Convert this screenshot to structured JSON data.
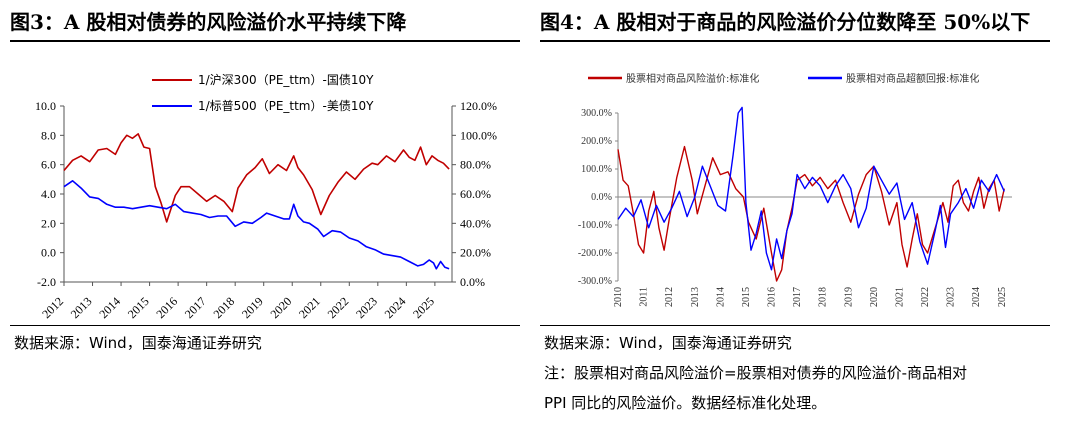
{
  "left": {
    "title": "图3：A 股相对债券的风险溢价水平持续下降",
    "source": "数据来源：Wind，国泰海通证券研究",
    "chart_data": {
      "type": "line",
      "x_ticks": [
        "2012",
        "2013",
        "2014",
        "2015",
        "2016",
        "2017",
        "2018",
        "2019",
        "2020",
        "2021",
        "2022",
        "2023",
        "2024",
        "2025"
      ],
      "x_range": [
        2012.0,
        2025.6
      ],
      "left_ylim": [
        -2.0,
        10.0
      ],
      "left_ticks": [
        "-2.0",
        "0.0",
        "2.0",
        "4.0",
        "6.0",
        "8.0",
        "10.0"
      ],
      "right_ylim": [
        0,
        120
      ],
      "right_ticks": [
        "0.0%",
        "20.0%",
        "40.0%",
        "60.0%",
        "80.0%",
        "100.0%",
        "120.0%"
      ],
      "legend_position": "top-center",
      "series": [
        {
          "name": "1/沪深300（PE_ttm）-国债10Y",
          "color": "#C00000",
          "axis": "left",
          "x": [
            2012.0,
            2012.3,
            2012.6,
            2012.9,
            2013.2,
            2013.5,
            2013.8,
            2014.0,
            2014.2,
            2014.4,
            2014.6,
            2014.8,
            2015.0,
            2015.2,
            2015.4,
            2015.6,
            2015.9,
            2016.1,
            2016.4,
            2016.7,
            2017.0,
            2017.3,
            2017.6,
            2017.9,
            2018.1,
            2018.4,
            2018.7,
            2018.95,
            2019.2,
            2019.5,
            2019.8,
            2020.05,
            2020.2,
            2020.4,
            2020.7,
            2021.0,
            2021.3,
            2021.6,
            2021.9,
            2022.2,
            2022.5,
            2022.8,
            2023.0,
            2023.3,
            2023.6,
            2023.9,
            2024.1,
            2024.3,
            2024.5,
            2024.7,
            2024.9,
            2025.1,
            2025.3,
            2025.5
          ],
          "values": [
            5.6,
            6.3,
            6.6,
            6.2,
            7.0,
            7.1,
            6.7,
            7.5,
            8.0,
            7.8,
            8.1,
            7.2,
            7.1,
            4.5,
            3.4,
            2.1,
            3.9,
            4.5,
            4.5,
            4.0,
            3.5,
            3.9,
            3.5,
            2.8,
            4.4,
            5.3,
            5.8,
            6.4,
            5.4,
            6.0,
            5.6,
            6.6,
            5.8,
            5.3,
            4.3,
            2.6,
            3.9,
            4.8,
            5.5,
            5.0,
            5.7,
            6.1,
            6.0,
            6.6,
            6.2,
            7.0,
            6.5,
            6.3,
            7.2,
            6.0,
            6.6,
            6.3,
            6.1,
            5.7
          ]
        },
        {
          "name": "1/标普500（PE_ttm）-美债10Y",
          "color": "#0000FF",
          "axis": "right",
          "x": [
            2012.0,
            2012.3,
            2012.6,
            2012.9,
            2013.2,
            2013.5,
            2013.8,
            2014.1,
            2014.4,
            2014.7,
            2015.0,
            2015.3,
            2015.6,
            2015.9,
            2016.2,
            2016.5,
            2016.8,
            2017.1,
            2017.4,
            2017.7,
            2018.0,
            2018.3,
            2018.6,
            2018.9,
            2019.1,
            2019.4,
            2019.7,
            2019.9,
            2020.05,
            2020.2,
            2020.4,
            2020.6,
            2020.9,
            2021.1,
            2021.4,
            2021.7,
            2022.0,
            2022.3,
            2022.6,
            2022.9,
            2023.2,
            2023.5,
            2023.8,
            2024.1,
            2024.4,
            2024.6,
            2024.8,
            2024.95,
            2025.05,
            2025.2,
            2025.35,
            2025.5
          ],
          "values": [
            65,
            69,
            64,
            58,
            57,
            53,
            51,
            51,
            50,
            51,
            52,
            51,
            50,
            53,
            48,
            47,
            46,
            44,
            45,
            45,
            38,
            41,
            40,
            44,
            47,
            45,
            43,
            43,
            53,
            45,
            41,
            40,
            36,
            31,
            35,
            34,
            30,
            28,
            24,
            22,
            19,
            18,
            17,
            14,
            11,
            12,
            15,
            13,
            9,
            14,
            10,
            9
          ]
        }
      ]
    }
  },
  "right": {
    "title": "图4：A 股相对于商品的风险溢价分位数降至 50%以下",
    "source": "数据来源：Wind，国泰海通证券研究",
    "note_line1": "注：股票相对商品风险溢价=股票相对债券的风险溢价-商品相对",
    "note_line2": "PPI 同比的风险溢价。数据经标准化处理。",
    "chart_data": {
      "type": "line",
      "x_ticks": [
        "2010",
        "2011",
        "2012",
        "2013",
        "2014",
        "2015",
        "2016",
        "2017",
        "2018",
        "2019",
        "2020",
        "2021",
        "2022",
        "2023",
        "2024",
        "2025"
      ],
      "x_range": [
        2010.0,
        2025.4
      ],
      "ylim": [
        -300,
        300
      ],
      "y_ticks": [
        "-300.0%",
        "-200.0%",
        "-100.0%",
        "0.0%",
        "100.0%",
        "200.0%",
        "300.0%"
      ],
      "legend_position": "top-center",
      "series": [
        {
          "name": "股票相对商品风险溢价:标准化",
          "color": "#C00000",
          "x": [
            2010.0,
            2010.2,
            2010.4,
            2010.6,
            2010.8,
            2011.0,
            2011.2,
            2011.4,
            2011.6,
            2011.8,
            2012.0,
            2012.3,
            2012.6,
            2012.9,
            2013.1,
            2013.4,
            2013.7,
            2014.0,
            2014.3,
            2014.6,
            2014.9,
            2015.1,
            2015.4,
            2015.7,
            2016.0,
            2016.2,
            2016.4,
            2016.6,
            2016.8,
            2017.0,
            2017.3,
            2017.6,
            2017.9,
            2018.2,
            2018.5,
            2018.8,
            2019.1,
            2019.4,
            2019.7,
            2020.0,
            2020.3,
            2020.6,
            2020.9,
            2021.1,
            2021.3,
            2021.5,
            2021.7,
            2021.9,
            2022.1,
            2022.3,
            2022.5,
            2022.7,
            2022.9,
            2023.1,
            2023.3,
            2023.5,
            2023.7,
            2023.9,
            2024.1,
            2024.3,
            2024.5,
            2024.7,
            2024.9,
            2025.1
          ],
          "values": [
            170,
            60,
            40,
            -60,
            -170,
            -200,
            -50,
            20,
            -110,
            -190,
            -80,
            70,
            180,
            60,
            -60,
            40,
            140,
            80,
            90,
            30,
            0,
            -90,
            -150,
            -40,
            -200,
            -300,
            -260,
            -120,
            -40,
            60,
            80,
            40,
            70,
            30,
            60,
            -20,
            -90,
            10,
            80,
            110,
            20,
            -100,
            -20,
            -170,
            -250,
            -150,
            -60,
            -170,
            -200,
            -140,
            -80,
            -20,
            -90,
            40,
            60,
            -20,
            -50,
            20,
            70,
            -40,
            30,
            60,
            -50,
            30
          ]
        },
        {
          "name": "股票相对商品超额回报:标准化",
          "color": "#0000FF",
          "x": [
            2010.0,
            2010.3,
            2010.6,
            2010.9,
            2011.2,
            2011.5,
            2011.8,
            2012.1,
            2012.4,
            2012.7,
            2013.0,
            2013.3,
            2013.6,
            2013.9,
            2014.2,
            2014.5,
            2014.7,
            2014.85,
            2015.0,
            2015.2,
            2015.4,
            2015.6,
            2015.8,
            2016.0,
            2016.2,
            2016.4,
            2016.6,
            2016.8,
            2017.0,
            2017.3,
            2017.6,
            2017.9,
            2018.2,
            2018.5,
            2018.8,
            2019.1,
            2019.4,
            2019.7,
            2020.0,
            2020.3,
            2020.6,
            2020.9,
            2021.2,
            2021.5,
            2021.8,
            2022.1,
            2022.4,
            2022.6,
            2022.8,
            2023.0,
            2023.3,
            2023.6,
            2023.9,
            2024.2,
            2024.5,
            2024.8,
            2025.1
          ],
          "values": [
            -80,
            -40,
            -70,
            -10,
            -110,
            -30,
            -90,
            -40,
            20,
            -70,
            0,
            110,
            40,
            -30,
            -50,
            150,
            300,
            320,
            -20,
            -190,
            -130,
            -50,
            -200,
            -260,
            -150,
            -220,
            -120,
            -60,
            80,
            30,
            70,
            40,
            -20,
            40,
            80,
            30,
            -110,
            -40,
            110,
            60,
            10,
            50,
            -80,
            -20,
            -160,
            -240,
            -120,
            -30,
            -180,
            -60,
            -20,
            30,
            -40,
            60,
            20,
            80,
            20
          ]
        }
      ]
    }
  }
}
